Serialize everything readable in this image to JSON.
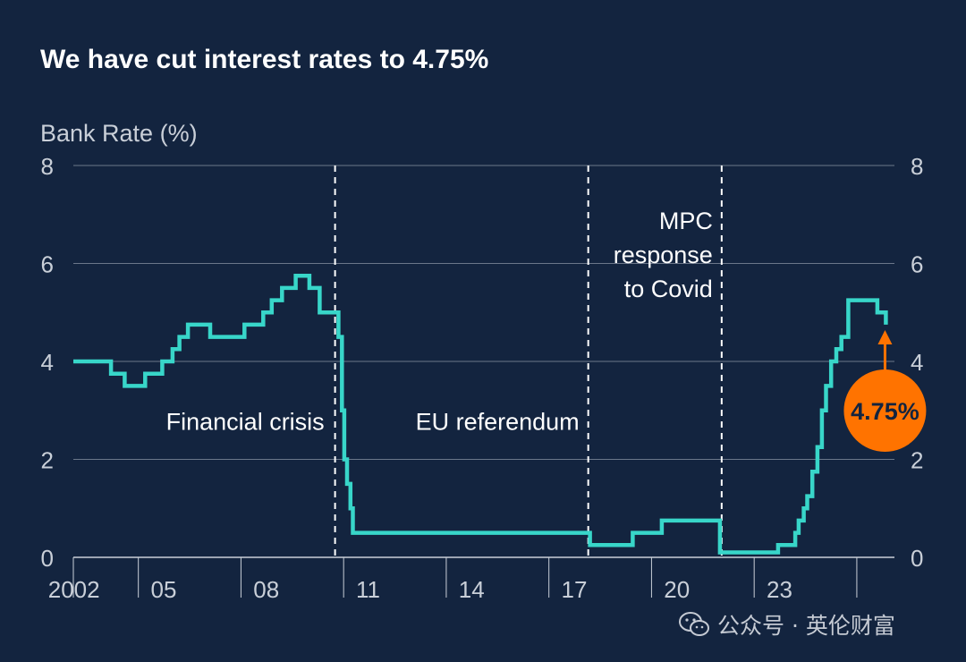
{
  "title": "We have cut interest rates to 4.75%",
  "watermark": "公众号 · 英伦财富",
  "watermark_icon": "wechat-icon",
  "colors": {
    "background": "#13243f",
    "line": "#38d6c9",
    "gridline": "#6b778a",
    "text": "#ffffff",
    "axis_text": "#c9cfd8",
    "callout": "#ff7300",
    "callout_text": "#13243f"
  },
  "chart_data": {
    "type": "line",
    "title": "We have cut interest rates to 4.75%",
    "ylabel": "Bank Rate (%)",
    "xlabel": "",
    "ylim": [
      0,
      8
    ],
    "xlim": [
      2001.0,
      2025.0
    ],
    "yticks": [
      0,
      2,
      4,
      6,
      8
    ],
    "xticks": [
      {
        "label": "2002",
        "value": 2002
      },
      {
        "label": "05",
        "value": 2005
      },
      {
        "label": "08",
        "value": 2008
      },
      {
        "label": "11",
        "value": 2011
      },
      {
        "label": "14",
        "value": 2014
      },
      {
        "label": "17",
        "value": 2017
      },
      {
        "label": "20",
        "value": 2020
      },
      {
        "label": "23",
        "value": 2023
      }
    ],
    "grid": true,
    "y_axis_both_sides": true,
    "series": [
      {
        "step": true,
        "x": [
          2001.0,
          2002.1,
          2002.5,
          2003.1,
          2003.6,
          2003.9,
          2004.1,
          2004.35,
          2004.6,
          2005.0,
          2006.0,
          2006.55,
          2006.8,
          2007.1,
          2007.5,
          2007.9,
          2008.2,
          2008.75,
          2008.85,
          2008.92,
          2009.0,
          2009.1,
          2009.17,
          2009.25,
          2016.1,
          2017.35,
          2018.2,
          2019.9,
          2020.2,
          2021.6,
          2022.1,
          2022.2,
          2022.35,
          2022.45,
          2022.6,
          2022.75,
          2022.88,
          2023.0,
          2023.15,
          2023.3,
          2023.45,
          2023.65,
          2024.5,
          2024.75
        ],
        "y": [
          4.0,
          3.75,
          3.5,
          3.75,
          4.0,
          4.25,
          4.5,
          4.75,
          4.75,
          4.5,
          4.75,
          5.0,
          5.25,
          5.5,
          5.75,
          5.5,
          5.0,
          4.5,
          3.0,
          2.0,
          1.5,
          1.0,
          0.5,
          0.5,
          0.25,
          0.5,
          0.75,
          0.1,
          0.1,
          0.25,
          0.5,
          0.75,
          1.0,
          1.25,
          1.75,
          2.25,
          3.0,
          3.5,
          4.0,
          4.25,
          4.5,
          5.25,
          5.0,
          4.75
        ]
      }
    ],
    "annotations": [
      {
        "text": "Financial crisis",
        "x": 2008.6,
        "y": 2.6,
        "anchor": "end"
      },
      {
        "text": "EU referendum",
        "x": 2016.05,
        "y": 2.6,
        "anchor": "end"
      },
      {
        "lines": [
          "MPC",
          "response",
          "to Covid"
        ],
        "x": 2019.95,
        "y": 6.7,
        "anchor": "end"
      }
    ],
    "vlines": [
      2008.65,
      2016.05,
      2019.95
    ],
    "callout": {
      "text": "4.75%",
      "x": 2024.75,
      "y": 4.75
    }
  }
}
